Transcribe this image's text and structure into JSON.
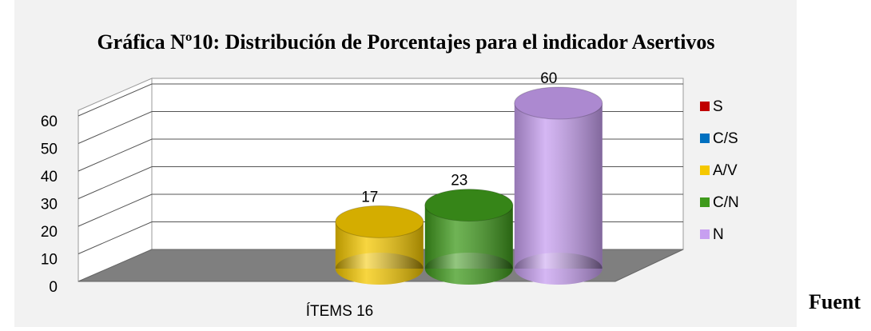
{
  "chart_data": {
    "type": "bar3d",
    "title": "Gráfica Nº10: Distribución de Porcentajes para el indicador Asertivos",
    "categories": [
      "ÍTEMS 16"
    ],
    "series": [
      {
        "name": "S",
        "color": "#c00000",
        "values": [
          0
        ]
      },
      {
        "name": "C/S",
        "color": "#0070c0",
        "values": [
          0
        ]
      },
      {
        "name": "A/V",
        "color": "#f5c800",
        "values": [
          17
        ]
      },
      {
        "name": "C/N",
        "color": "#3f9a1c",
        "values": [
          23
        ]
      },
      {
        "name": "N",
        "color": "#c79ff0",
        "values": [
          60
        ]
      }
    ],
    "ylim": [
      0,
      60
    ],
    "yticks": [
      0,
      10,
      20,
      30,
      40,
      50,
      60
    ],
    "grid": true,
    "legend": "right"
  },
  "side_text": "Fuent"
}
